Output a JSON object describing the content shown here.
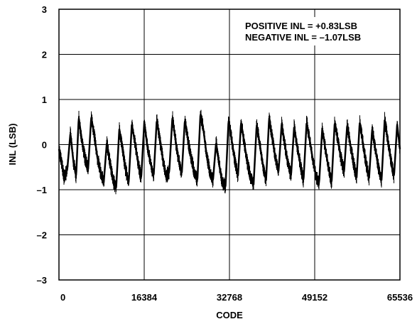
{
  "chart_data": {
    "type": "line",
    "title": "",
    "xlabel": "CODE",
    "ylabel": "INL (LSB)",
    "xlim": [
      0,
      65536
    ],
    "ylim": [
      -3,
      3
    ],
    "grid": true,
    "x_ticks": [
      0,
      16384,
      32768,
      49152,
      65536
    ],
    "x_tick_labels": [
      "0",
      "16384",
      "32768",
      "49152",
      "65536"
    ],
    "y_ticks": [
      3,
      2,
      1,
      0,
      -1,
      -2,
      -3
    ],
    "y_tick_labels": [
      "3",
      "2",
      "1",
      "0",
      "–1",
      "–2",
      "–3"
    ],
    "annotations": [
      "POSITIVE INL = +0.83LSB",
      "NEGATIVE INL = –1.07LSB"
    ],
    "series": [
      {
        "color": "#000000",
        "noise_lsb": 0.15,
        "x": [
          0,
          500,
          1000,
          1600,
          2200,
          2800,
          3300,
          3800,
          4400,
          5000,
          5600,
          6200,
          6800,
          7400,
          8000,
          8600,
          9200,
          9800,
          10400,
          11000,
          11600,
          12200,
          12800,
          13400,
          14000,
          14600,
          15200,
          15800,
          16400,
          17000,
          17600,
          18200,
          18800,
          19400,
          20000,
          20600,
          21200,
          21800,
          22400,
          23000,
          23600,
          24200,
          24800,
          25400,
          26000,
          26600,
          27200,
          27800,
          28400,
          29000,
          29600,
          30200,
          30800,
          31400,
          32000,
          32600,
          33200,
          33800,
          34400,
          35000,
          35600,
          36200,
          36800,
          37400,
          38000,
          38600,
          39200,
          39800,
          40400,
          41000,
          41600,
          42200,
          42800,
          43400,
          44000,
          44600,
          45200,
          45800,
          46400,
          47000,
          47600,
          48200,
          48800,
          49400,
          50000,
          50600,
          51200,
          51800,
          52400,
          53000,
          53600,
          54200,
          54800,
          55400,
          56000,
          56600,
          57200,
          57800,
          58400,
          59000,
          59600,
          60200,
          60800,
          61400,
          62000,
          62600,
          63200,
          63800,
          64400,
          65000,
          65536
        ],
        "y": [
          -0.1,
          -0.4,
          -0.75,
          -0.55,
          0.25,
          -0.4,
          -0.7,
          0.6,
          0.1,
          -0.3,
          -0.55,
          0.6,
          0.2,
          -0.3,
          -0.6,
          -0.85,
          0.05,
          -0.4,
          -0.8,
          -0.95,
          0.35,
          -0.1,
          -0.55,
          -0.85,
          0.45,
          0.05,
          -0.4,
          -0.75,
          0.5,
          -0.05,
          -0.4,
          -0.7,
          0.55,
          0.1,
          -0.35,
          -0.7,
          -0.6,
          0.6,
          0.1,
          -0.35,
          -0.65,
          0.55,
          0.1,
          -0.3,
          -0.6,
          -0.8,
          0.7,
          0.3,
          -0.25,
          -0.6,
          -0.8,
          0.05,
          -0.45,
          -0.85,
          -0.95,
          0.55,
          0.1,
          -0.35,
          -0.7,
          0.5,
          0.05,
          -0.4,
          -0.7,
          -0.9,
          0.45,
          0.0,
          -0.45,
          -0.8,
          0.6,
          0.15,
          -0.3,
          -0.6,
          0.45,
          0.0,
          -0.4,
          -0.7,
          0.4,
          -0.05,
          -0.45,
          -0.8,
          0.5,
          0.1,
          -0.35,
          -0.7,
          -0.85,
          0.35,
          -0.1,
          -0.5,
          -0.85,
          0.5,
          0.1,
          -0.3,
          -0.6,
          0.45,
          0.0,
          -0.4,
          -0.75,
          0.5,
          0.05,
          -0.4,
          -0.75,
          0.35,
          -0.1,
          -0.5,
          -0.8,
          0.55,
          0.1,
          -0.35,
          -0.7,
          0.45,
          -0.1
        ]
      }
    ]
  }
}
